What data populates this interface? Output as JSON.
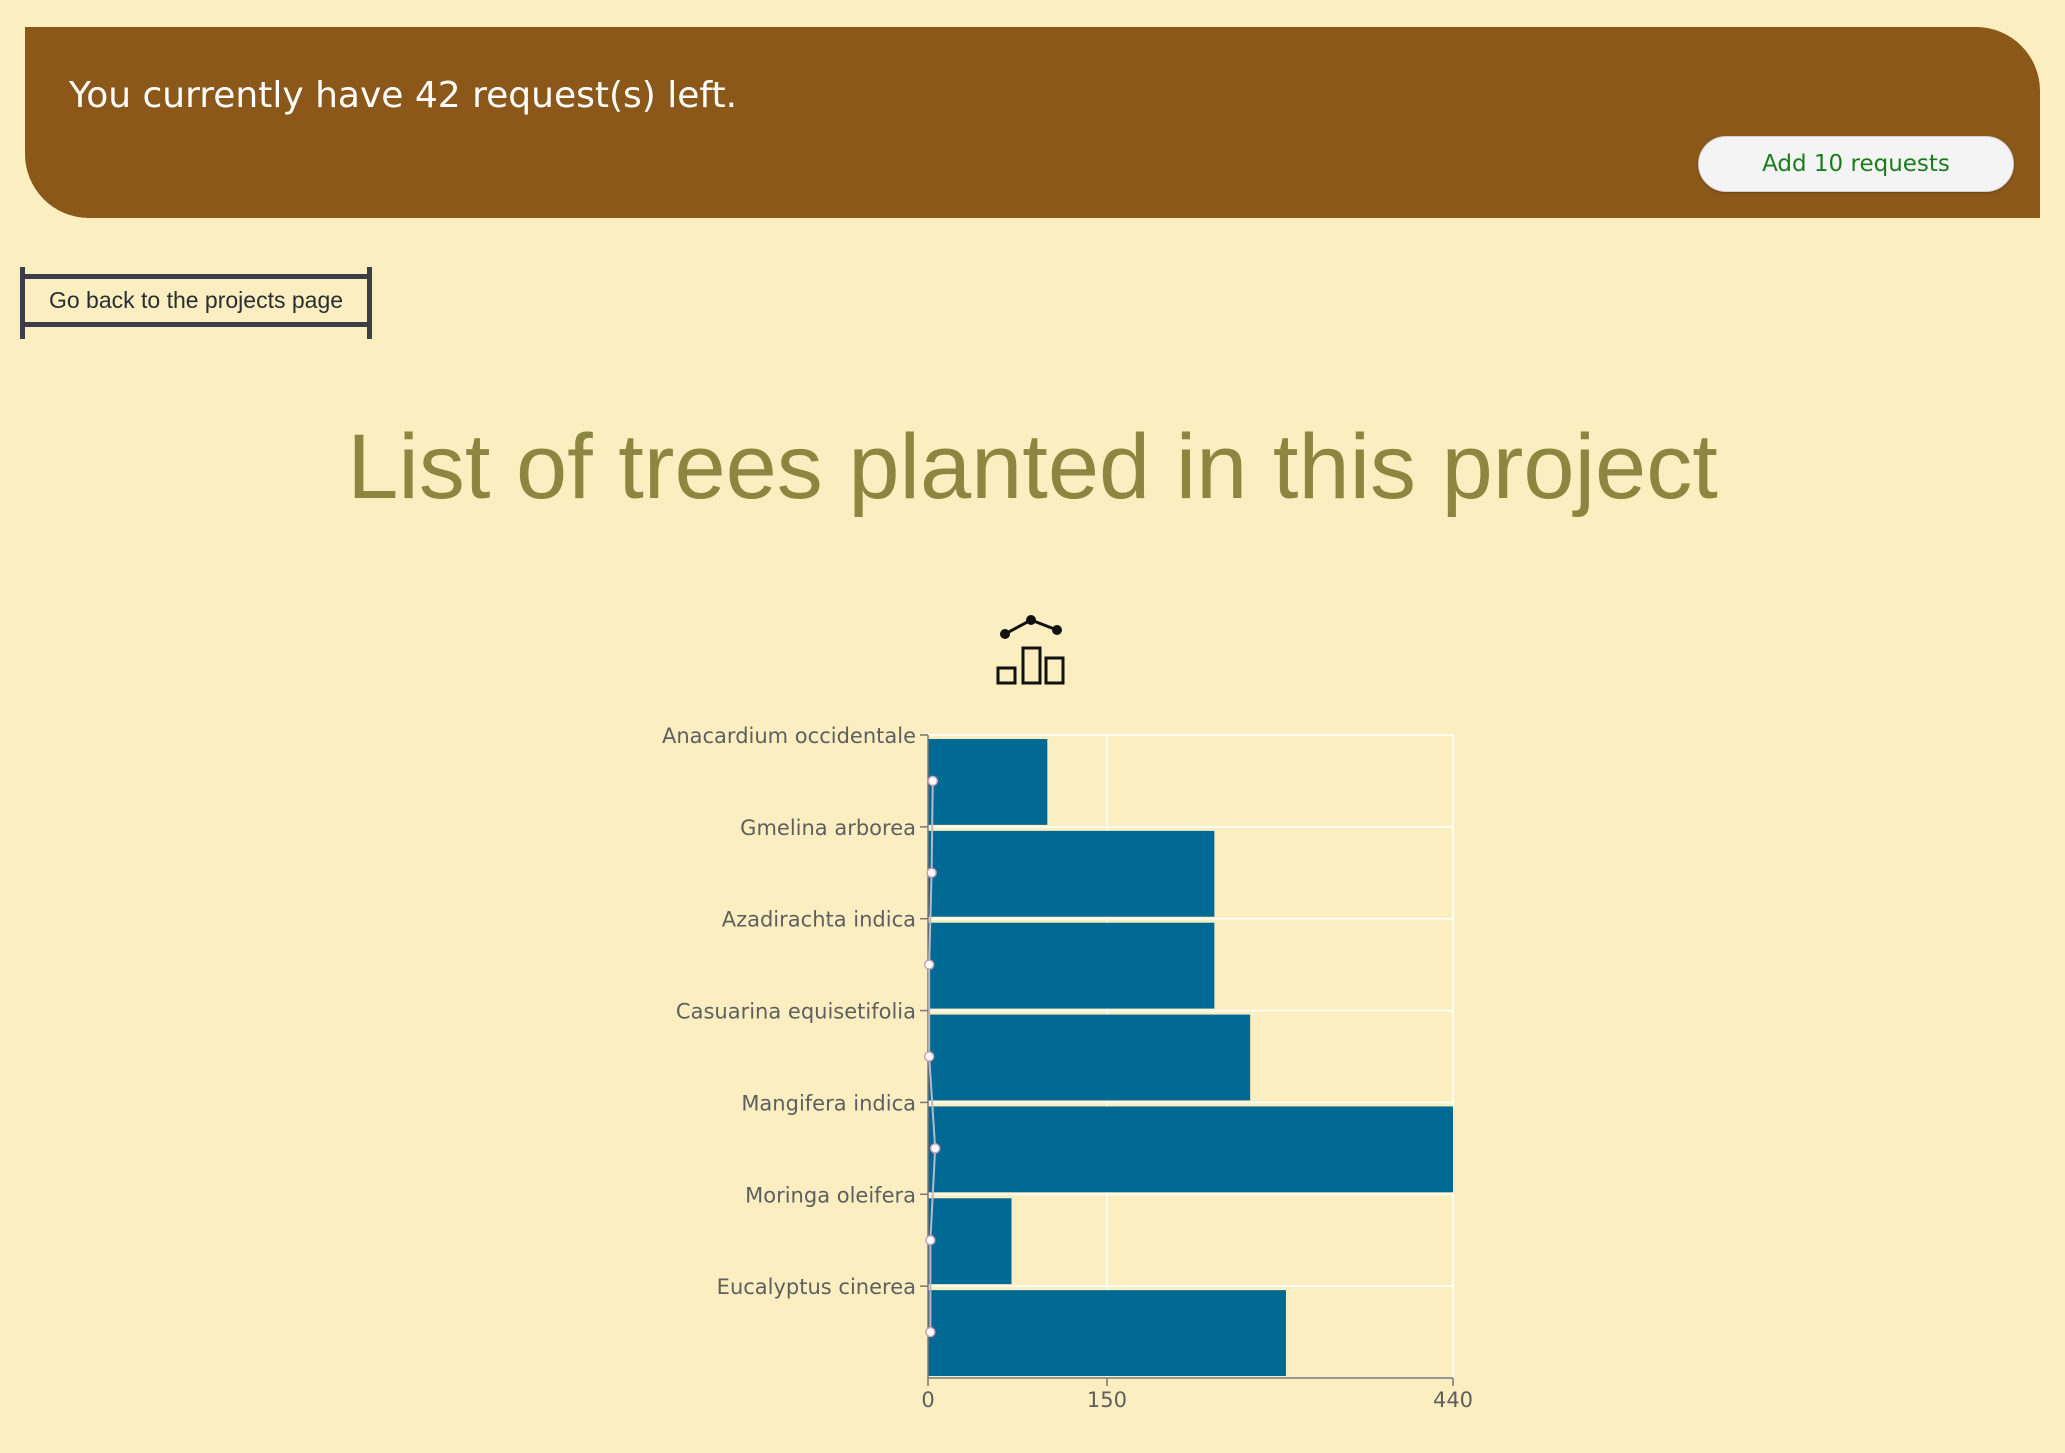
{
  "banner": {
    "message": "You currently have 42 request(s) left.",
    "add_button_label": "Add 10 requests"
  },
  "nav": {
    "back_button_label": "Go back to the projects page"
  },
  "page": {
    "title": "List of trees planted in this project"
  },
  "icons": {
    "chart_toggle": "chart-toggle-icon"
  },
  "colors": {
    "background": "#fbeec0",
    "banner": "#8b581a",
    "bar": "#006994",
    "title": "#8c8640",
    "button_text": "#1a7d1a"
  },
  "chart_data": {
    "type": "bar",
    "orientation": "horizontal",
    "categories": [
      "Anacardium occidentale",
      "Gmelina arborea",
      "Azadirachta indica",
      "Casuarina equisetifolia",
      "Mangifera indica",
      "Moringa oleifera",
      "Eucalyptus cinerea"
    ],
    "values": [
      100,
      240,
      240,
      270,
      440,
      70,
      300
    ],
    "line_values": [
      4,
      3,
      1,
      1,
      6,
      2,
      2
    ],
    "xlim": [
      0,
      440
    ],
    "x_ticks": [
      "0",
      "150",
      "440"
    ],
    "grid": true,
    "title": "",
    "xlabel": "",
    "ylabel": ""
  }
}
